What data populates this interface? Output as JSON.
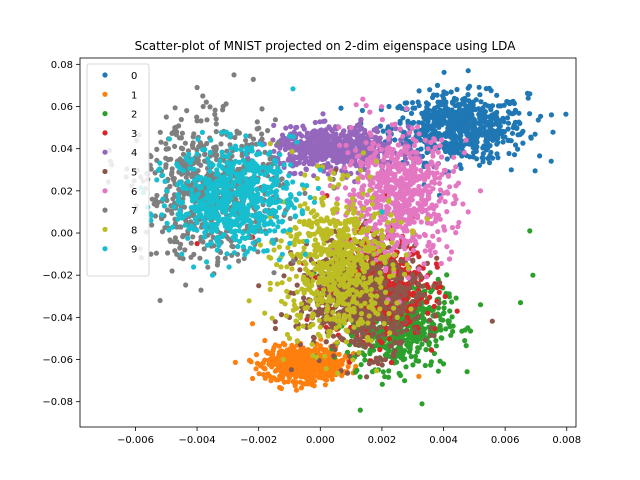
{
  "chart_data": {
    "type": "scatter",
    "title": "Scatter-plot of MNIST projected on 2-dim eigenspace using LDA",
    "xlabel": "",
    "ylabel": "",
    "xlim": [
      -0.0078,
      0.0083
    ],
    "ylim": [
      -0.092,
      0.083
    ],
    "x_ticks": [
      -0.006,
      -0.004,
      -0.002,
      0.0,
      0.002,
      0.004,
      0.006,
      0.008
    ],
    "x_tick_labels": [
      "−0.006",
      "−0.004",
      "−0.002",
      "0.000",
      "0.002",
      "0.004",
      "0.006",
      "0.008"
    ],
    "y_ticks": [
      -0.08,
      -0.06,
      -0.04,
      -0.02,
      0.0,
      0.02,
      0.04,
      0.06,
      0.08
    ],
    "y_tick_labels": [
      "−0.08",
      "−0.06",
      "−0.04",
      "−0.02",
      "0.00",
      "0.02",
      "0.04",
      "0.06",
      "0.08"
    ],
    "grid": false,
    "legend_position": "top-left",
    "series": [
      {
        "name": "0",
        "color": "#1f77b4",
        "center": [
          0.0045,
          0.05
        ],
        "spread": [
          0.0011,
          0.008
        ],
        "outliers": [
          [
            0.0075,
            0.056
          ],
          [
            0.0068,
            0.066
          ],
          [
            0.0062,
            0.03
          ],
          [
            0.0048,
            0.077
          ],
          [
            0.0062,
            0.062
          ]
        ]
      },
      {
        "name": "1",
        "color": "#ff7f0e",
        "center": [
          -0.0005,
          -0.062
        ],
        "spread": [
          0.0006,
          0.004
        ],
        "outliers": [
          [
            -0.0022,
            -0.043
          ],
          [
            -0.0016,
            -0.07
          ],
          [
            0.0032,
            -0.068
          ],
          [
            -0.0018,
            -0.051
          ]
        ]
      },
      {
        "name": "2",
        "color": "#2ca02c",
        "center": [
          0.0025,
          -0.042
        ],
        "spread": [
          0.0008,
          0.011
        ],
        "outliers": [
          [
            0.0068,
            0.001
          ],
          [
            0.0069,
            -0.02
          ],
          [
            0.0065,
            -0.033
          ],
          [
            0.0042,
            -0.037
          ],
          [
            0.0013,
            -0.084
          ],
          [
            0.0033,
            -0.081
          ],
          [
            0.0052,
            -0.034
          ],
          [
            0.0047,
            -0.046
          ]
        ]
      },
      {
        "name": "3",
        "color": "#d62728",
        "center": [
          0.0018,
          -0.025
        ],
        "spread": [
          0.0008,
          0.012
        ],
        "outliers": [
          [
            -0.004,
            -0.005
          ],
          [
            -0.0024,
            0.011
          ],
          [
            0.0024,
            -0.018
          ],
          [
            -0.0022,
            -0.002
          ],
          [
            0.003,
            -0.01
          ]
        ]
      },
      {
        "name": "4",
        "color": "#9467bd",
        "center": [
          0.0005,
          0.04
        ],
        "spread": [
          0.001,
          0.005
        ],
        "outliers": [
          [
            0.0012,
            0.051
          ],
          [
            -0.0008,
            0.05
          ],
          [
            0.0002,
            0.046
          ],
          [
            -0.0006,
            0.046
          ]
        ]
      },
      {
        "name": "5",
        "color": "#8c564b",
        "center": [
          0.0013,
          -0.03
        ],
        "spread": [
          0.001,
          0.013
        ],
        "outliers": [
          [
            -0.002,
            -0.025
          ],
          [
            0.0025,
            -0.052
          ],
          [
            -0.001,
            -0.04
          ],
          [
            0.003,
            -0.02
          ],
          [
            0.0005,
            0.03
          ]
        ]
      },
      {
        "name": "6",
        "color": "#e377c2",
        "center": [
          0.0025,
          0.018
        ],
        "spread": [
          0.0009,
          0.015
        ],
        "outliers": [
          [
            0.0052,
            0.02
          ],
          [
            0.0048,
            0.01
          ],
          [
            0.0045,
            0.005
          ],
          [
            0.001,
            0.05
          ],
          [
            0.0035,
            0.04
          ]
        ]
      },
      {
        "name": "7",
        "color": "#7f7f7f",
        "center": [
          -0.0035,
          0.02
        ],
        "spread": [
          0.0011,
          0.016
        ],
        "outliers": [
          [
            -0.0028,
            0.075
          ],
          [
            -0.005,
            0.055
          ],
          [
            -0.006,
            0.011
          ],
          [
            -0.0052,
            -0.032
          ],
          [
            -0.004,
            0.069
          ],
          [
            -0.0055,
            -0.01
          ],
          [
            -0.0038,
            0.06
          ]
        ]
      },
      {
        "name": "8",
        "color": "#bcbd22",
        "center": [
          0.0005,
          -0.015
        ],
        "spread": [
          0.0009,
          0.018
        ],
        "outliers": [
          [
            0.0014,
            0.038
          ],
          [
            -0.001,
            -0.05
          ],
          [
            0.0025,
            -0.04
          ],
          [
            -0.0012,
            -0.06
          ],
          [
            0.003,
            0.0
          ]
        ]
      },
      {
        "name": "9",
        "color": "#17becf",
        "center": [
          -0.0028,
          0.017
        ],
        "spread": [
          0.001,
          0.012
        ],
        "outliers": [
          [
            -0.0055,
            0.006
          ],
          [
            -0.001,
            0.046
          ],
          [
            0.0,
            0.03
          ],
          [
            -0.0045,
            -0.01
          ],
          [
            -0.0035,
            -0.02
          ],
          [
            0.002,
            0.01
          ]
        ]
      }
    ]
  }
}
